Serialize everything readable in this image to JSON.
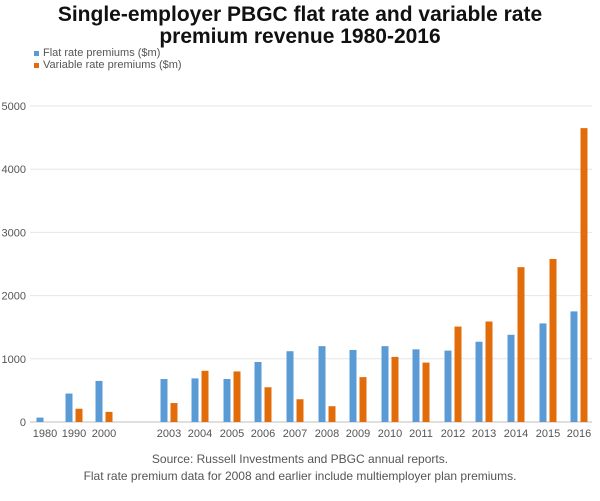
{
  "chart_data": {
    "type": "bar",
    "title": "Single-employer PBGC flat rate and variable rate\npremium revenue 1980-2016",
    "categories": [
      "1980",
      "1990",
      "2000",
      "2003",
      "2004",
      "2005",
      "2006",
      "2007",
      "2008",
      "2009",
      "2010",
      "2011",
      "2012",
      "2013",
      "2014",
      "2015",
      "2016"
    ],
    "series": [
      {
        "name": "Flat rate premiums ($m)",
        "color": "#5b9bd5",
        "values": [
          70,
          450,
          650,
          680,
          690,
          680,
          950,
          1120,
          1200,
          1140,
          1200,
          1150,
          1130,
          1270,
          1380,
          1560,
          1750
        ]
      },
      {
        "name": "Variable rate premiums ($m)",
        "color": "#e36c0a",
        "values": [
          null,
          210,
          160,
          300,
          810,
          800,
          550,
          360,
          250,
          710,
          1030,
          940,
          1510,
          1590,
          2450,
          2580,
          4650
        ]
      }
    ],
    "ylim": [
      0,
      5000
    ],
    "yticks": [
      0,
      1000,
      2000,
      3000,
      4000,
      5000
    ],
    "grid": true,
    "legend_position": "top-left",
    "source": [
      "Source: Russell Investments and PBGC annual reports.",
      "Flat rate premium data for 2008 and earlier include multiemployer plan premiums."
    ]
  }
}
